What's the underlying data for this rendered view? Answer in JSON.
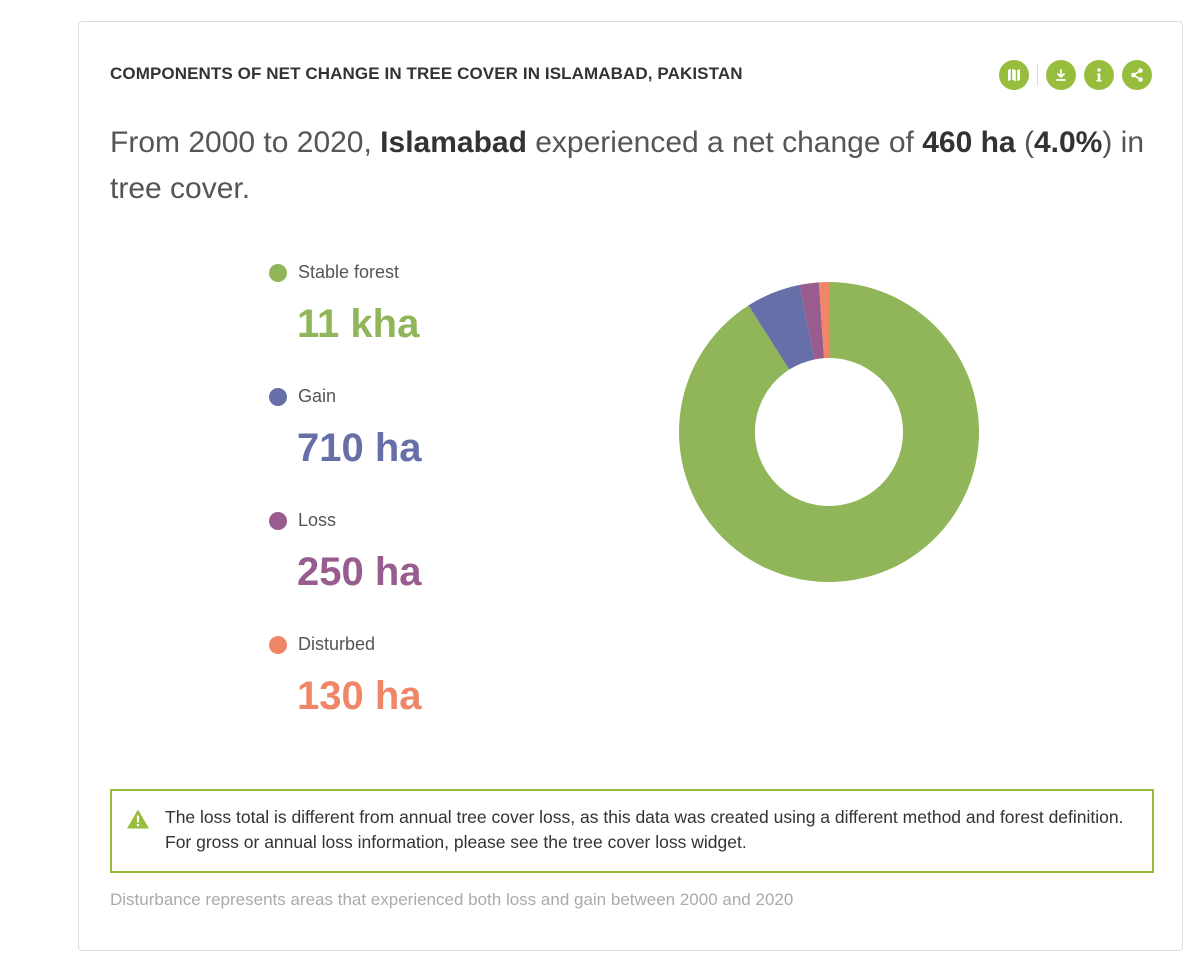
{
  "widget": {
    "title": "COMPONENTS OF NET CHANGE IN TREE COVER IN ISLAMABAD, PAKISTAN",
    "accent_color": "#97bd3d",
    "toolbar": [
      {
        "icon": "map-icon",
        "label": "Map"
      },
      {
        "icon": "download-icon",
        "label": "Download"
      },
      {
        "icon": "info-icon",
        "label": "Info"
      },
      {
        "icon": "share-icon",
        "label": "Share"
      }
    ]
  },
  "summary": {
    "prefix": "From 2000 to 2020, ",
    "location": "Islamabad",
    "middle": " experienced a net change of ",
    "amount": "460 ha",
    "open_paren": " (",
    "percent": "4.0%",
    "suffix": ") in tree cover."
  },
  "chart_data": {
    "type": "pie",
    "donut": true,
    "categories": [
      "Stable forest",
      "Gain",
      "Loss",
      "Disturbed"
    ],
    "values": [
      11000,
      710,
      250,
      130
    ],
    "display_values": [
      "11 kha",
      "710 ha",
      "250 ha",
      "130 ha"
    ],
    "colors": [
      "#91b659",
      "#666fa8",
      "#985d8e",
      "#ef8668"
    ],
    "legend": "left"
  },
  "notice": {
    "text": "The loss total is different from annual tree cover loss, as this data was created using a different method and forest definition. For gross or annual loss information, please see the tree cover loss widget."
  },
  "footnote": "Disturbance represents areas that experienced both loss and gain between 2000 and 2020"
}
